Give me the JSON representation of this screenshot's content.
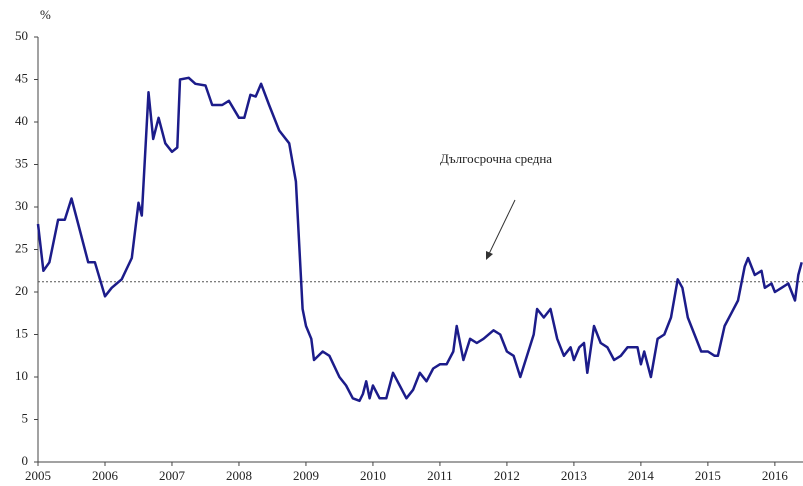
{
  "chart_data": {
    "type": "line",
    "y_label": "%",
    "annotation": "Дългосрочна средна",
    "reference_line": {
      "value": 21.2,
      "color": "#555555"
    },
    "x": [
      2005.0,
      2005.08,
      2005.17,
      2005.3,
      2005.4,
      2005.5,
      2005.6,
      2005.75,
      2005.85,
      2006.0,
      2006.1,
      2006.25,
      2006.4,
      2006.5,
      2006.55,
      2006.65,
      2006.72,
      2006.8,
      2006.9,
      2007.0,
      2007.08,
      2007.12,
      2007.25,
      2007.35,
      2007.5,
      2007.6,
      2007.75,
      2007.85,
      2008.0,
      2008.08,
      2008.17,
      2008.25,
      2008.33,
      2008.45,
      2008.6,
      2008.75,
      2008.85,
      2008.95,
      2009.0,
      2009.08,
      2009.12,
      2009.25,
      2009.35,
      2009.5,
      2009.6,
      2009.7,
      2009.8,
      2009.85,
      2009.9,
      2009.95,
      2010.0,
      2010.1,
      2010.2,
      2010.3,
      2010.4,
      2010.5,
      2010.6,
      2010.7,
      2010.8,
      2010.9,
      2011.0,
      2011.1,
      2011.2,
      2011.25,
      2011.35,
      2011.45,
      2011.55,
      2011.65,
      2011.8,
      2011.9,
      2012.0,
      2012.1,
      2012.2,
      2012.3,
      2012.4,
      2012.45,
      2012.55,
      2012.65,
      2012.75,
      2012.85,
      2012.95,
      2013.0,
      2013.08,
      2013.15,
      2013.2,
      2013.3,
      2013.4,
      2013.5,
      2013.6,
      2013.7,
      2013.8,
      2013.95,
      2014.0,
      2014.05,
      2014.15,
      2014.25,
      2014.35,
      2014.45,
      2014.55,
      2014.62,
      2014.7,
      2014.8,
      2014.9,
      2015.0,
      2015.1,
      2015.15,
      2015.25,
      2015.35,
      2015.45,
      2015.55,
      2015.6,
      2015.7,
      2015.8,
      2015.85,
      2015.95,
      2016.0,
      2016.1,
      2016.2,
      2016.3,
      2016.35,
      2016.4
    ],
    "series": [
      {
        "color": "#1c1c8a",
        "values": [
          28,
          22.5,
          23.5,
          28.5,
          28.5,
          31,
          28,
          23.5,
          23.5,
          19.5,
          20.5,
          21.5,
          24,
          30.5,
          29,
          43.5,
          38,
          40.5,
          37.5,
          36.5,
          37,
          45,
          45.2,
          44.5,
          44.3,
          42,
          42,
          42.5,
          40.5,
          40.5,
          43.2,
          43,
          44.5,
          42,
          39,
          37.5,
          33,
          18,
          16,
          14.5,
          12,
          13,
          12.5,
          10,
          9,
          7.5,
          7.2,
          8,
          9.5,
          7.5,
          9,
          7.5,
          7.5,
          10.5,
          9,
          7.5,
          8.5,
          10.5,
          9.5,
          11,
          11.5,
          11.5,
          13,
          16,
          12,
          14.5,
          14,
          14.5,
          15.5,
          15,
          13,
          12.5,
          10,
          12.5,
          15,
          18,
          17,
          18,
          14.5,
          12.5,
          13.5,
          12,
          13.5,
          14,
          10.5,
          16,
          14,
          13.5,
          12,
          12.5,
          13.5,
          13.5,
          11.5,
          13,
          10,
          14.5,
          15,
          17,
          21.5,
          20.5,
          17,
          15,
          13,
          13,
          12.5,
          12.5,
          16,
          17.5,
          19,
          23,
          24,
          22,
          22.5,
          20.5,
          21,
          20,
          20.5,
          21,
          19,
          22,
          23.5
        ]
      }
    ],
    "xlim": [
      2005,
      2016.42
    ],
    "xticks": [
      2005,
      2006,
      2007,
      2008,
      2009,
      2010,
      2011,
      2012,
      2013,
      2014,
      2015,
      2016
    ],
    "ylim": [
      0,
      50
    ],
    "yticks": [
      0,
      5,
      10,
      15,
      20,
      25,
      30,
      35,
      40,
      45,
      50
    ],
    "grid": false
  }
}
